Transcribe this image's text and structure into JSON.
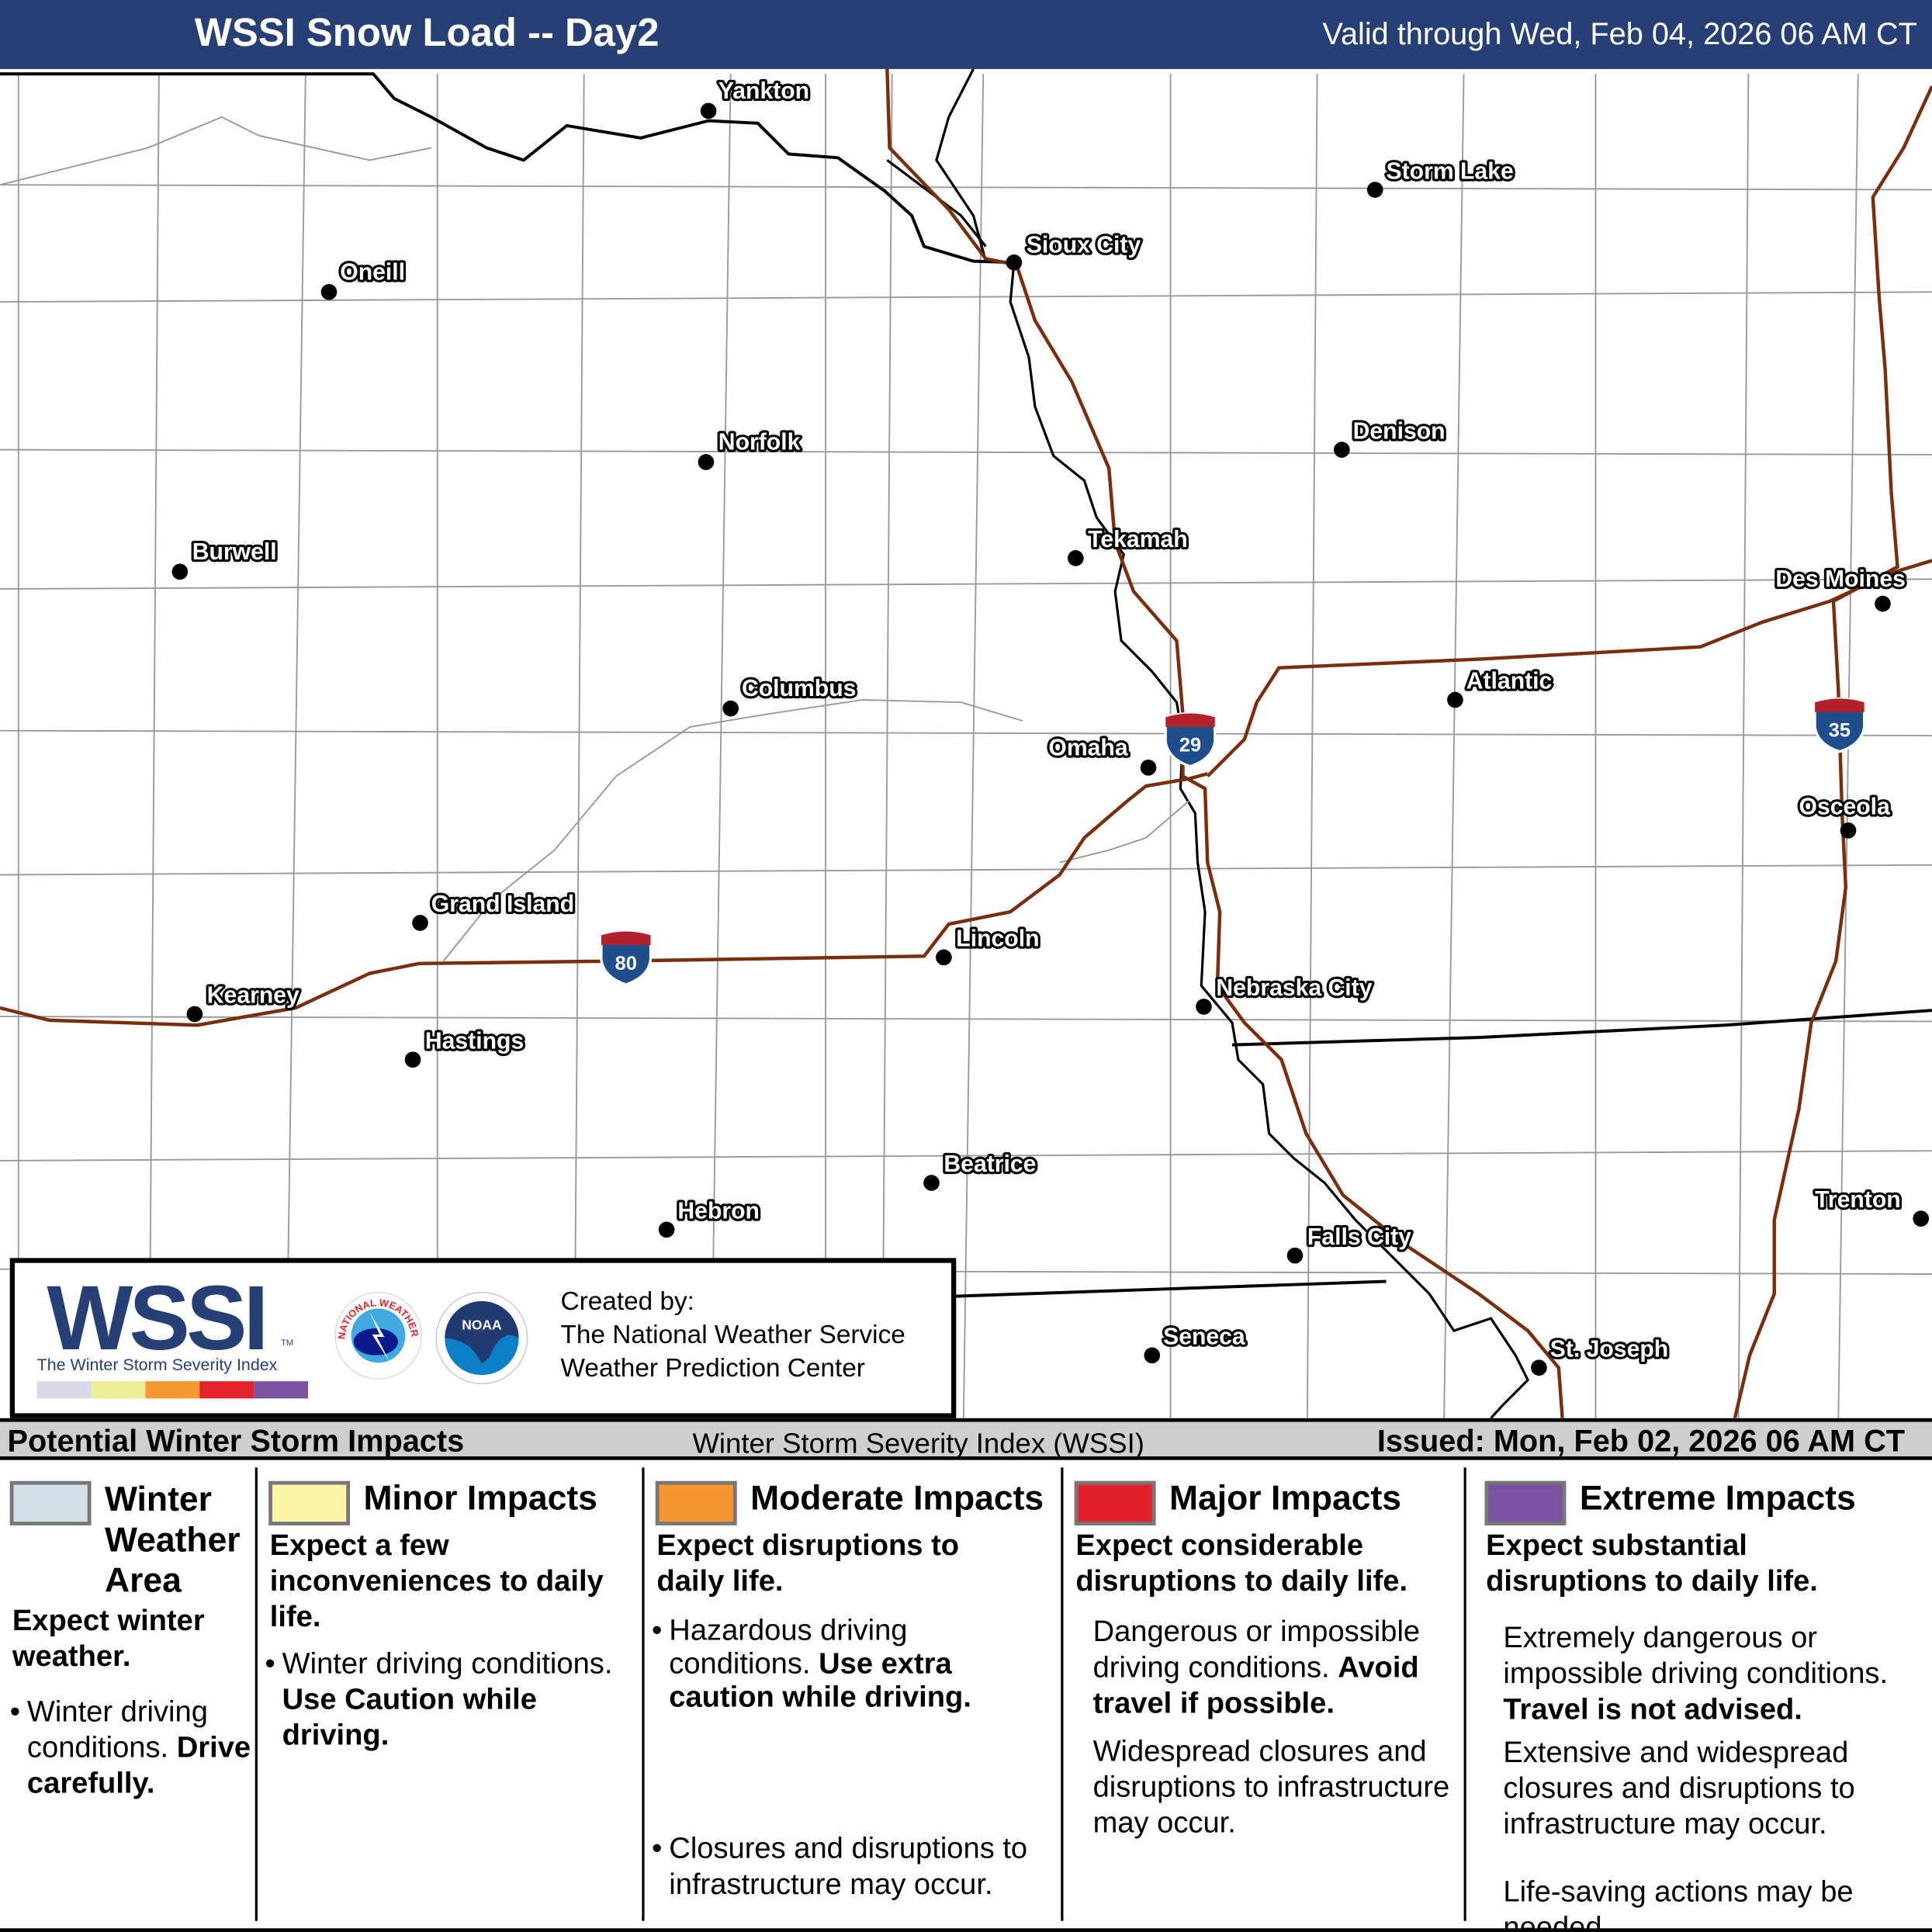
{
  "header": {
    "title": "WSSI Snow Load -- Day2",
    "valid": "Valid through Wed, Feb 04, 2026 06 AM CT"
  },
  "map": {
    "cities": [
      "Yankton",
      "Storm Lake",
      "Sioux City",
      "Oneill",
      "Norfolk",
      "Denison",
      "Burwell",
      "Tekamah",
      "Des Moines",
      "Atlantic",
      "Columbus",
      "Omaha",
      "Osceola",
      "Grand Island",
      "Lincoln",
      "Kearney",
      "Nebraska City",
      "Hastings",
      "Beatrice",
      "Trenton",
      "Hebron",
      "Falls City",
      "Seneca",
      "St. Joseph"
    ],
    "interstates": [
      "29",
      "35",
      "80"
    ],
    "colors": {
      "highway": "#7a2e0e",
      "river": "#000000",
      "county": "#9a9a9a",
      "state": "#000000",
      "shield_blue": "#1f4e8c",
      "shield_red": "#b5202e"
    }
  },
  "logo": {
    "wssi": "WSSI",
    "tm": "TM",
    "subtitle": "The Winter Storm Severity Index",
    "colorbar": [
      "#d9d9e8",
      "#eeee99",
      "#f59a33",
      "#e3242b",
      "#7b52a1"
    ],
    "nws_text": "NATIONAL WEATHER SERVICE",
    "noaa_text": "NOAA",
    "created_by": "Created by:",
    "org1": "The National Weather Service",
    "org2": "Weather Prediction Center"
  },
  "legend": {
    "left": "Potential Winter Storm Impacts",
    "center": "Winter Storm Severity Index (WSSI)",
    "issued": "Issued: Mon, Feb 02, 2026 06 AM CT",
    "categories": [
      {
        "color": "#d3dfe6",
        "title": "Winter Weather Area",
        "headline": "Expect winter weather.",
        "lines": [
          "Winter driving conditions.",
          "Drive carefully."
        ]
      },
      {
        "color": "#fbf6a3",
        "title": "Minor Impacts",
        "headline": "Expect a few inconveniences to daily life.",
        "lines": [
          "Winter driving conditions.",
          "Use Caution while driving."
        ]
      },
      {
        "color": "#f7962f",
        "title": "Moderate Impacts",
        "headline": "Expect disruptions to daily life.",
        "lines": [
          "Hazardous driving conditions.",
          "Use extra caution while driving.",
          "Closures and disruptions to infrastructure may occur."
        ]
      },
      {
        "color": "#e3212a",
        "title": "Major Impacts",
        "headline": "Expect considerable disruptions to daily life.",
        "lines": [
          "Dangerous or impossible driving conditions.",
          "Avoid travel if possible.",
          "Widespread closures and disruptions to infrastructure may occur."
        ]
      },
      {
        "color": "#7b52a1",
        "title": "Extreme Impacts",
        "headline": "Expect substantial disruptions to daily life.",
        "lines": [
          "Extremely dangerous or impossible driving conditions.",
          "Travel is not advised.",
          "Extensive and widespread closures and disruptions to infrastructure may occur.",
          "Life-saving actions may be needed."
        ]
      }
    ]
  }
}
